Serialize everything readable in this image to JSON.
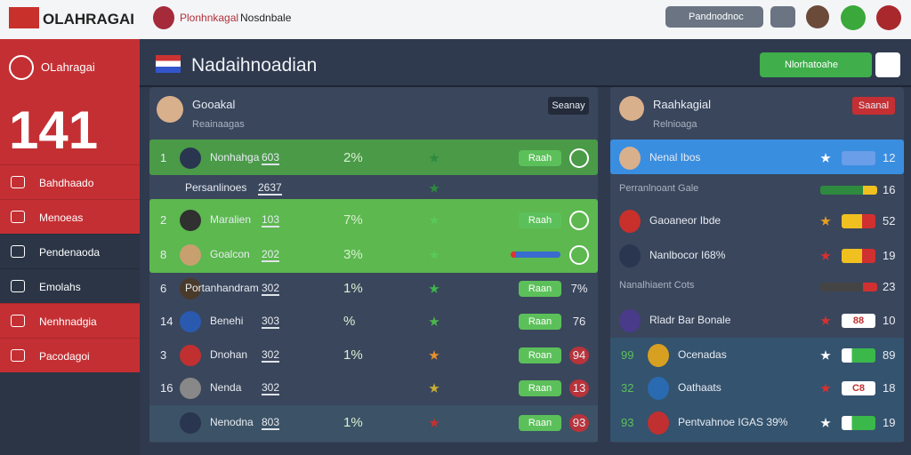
{
  "header": {
    "logo": "OLAHRAGAI",
    "tab": "Plonhnkagal",
    "tab2": "Nosdnbale",
    "search": "Pandnodnoc"
  },
  "sidebar": {
    "brand": "OLahragai",
    "big": "141",
    "items": [
      "Bahdhaado",
      "Menoeas",
      "Pendenaoda",
      "Emolahs",
      "Nenhnadgia",
      "Pacodagoi"
    ]
  },
  "main": {
    "title": "Nadaihnoadian",
    "button": "Nlorhatoahe"
  },
  "left_panel": {
    "title": "Gooakal",
    "subtitle": "Reainaagas",
    "button": "Seanay",
    "rows": [
      {
        "rank": "1",
        "name": "Nonhahga",
        "score": "603",
        "pct": "2%",
        "action": "Raah"
      },
      {
        "name": "Persanlinoes",
        "score": "2637"
      },
      {
        "rank": "2",
        "name": "Maralien",
        "score": "103",
        "pct": "7%",
        "action": "Raah"
      },
      {
        "rank": "8",
        "name": "Goalcon",
        "score": "202",
        "pct": "3%"
      },
      {
        "rank": "6",
        "name": "Portanhandram",
        "score": "302",
        "pct": "1%",
        "action": "Raan",
        "value": "7%"
      },
      {
        "rank": "14",
        "name": "Benehi",
        "score": "303",
        "pct": "%",
        "action": "Raan",
        "value": "76"
      },
      {
        "rank": "3",
        "name": "Dnohan",
        "score": "302",
        "pct": "1%",
        "action": "Roan",
        "value": "94"
      },
      {
        "rank": "16",
        "name": "Nenda",
        "score": "302",
        "action": "Raan",
        "value": "13"
      },
      {
        "name": "Nenodna",
        "score": "803",
        "pct": "1%",
        "action": "Raan",
        "value": "93"
      }
    ]
  },
  "right_panel": {
    "title": "Raahkagial",
    "subtitle": "Relnioaga",
    "button": "Saanal",
    "rows": [
      {
        "name": "Nenal Ibos",
        "value": "12"
      },
      {
        "name": "Perranlnoant Gale",
        "value": "16"
      },
      {
        "name": "Gaoaneor Ibde",
        "value": "52"
      },
      {
        "name": "Nanlbocor I68%",
        "value": "19"
      },
      {
        "name": "Nanalhiaent Cots",
        "value": "23"
      },
      {
        "name": "Rladr Bar Bonale",
        "badge": "88",
        "value": "10"
      },
      {
        "rank": "99",
        "name": "Ocenadas",
        "value": "89"
      },
      {
        "rank": "32",
        "name": "Oathaats",
        "badge": "C8",
        "value": "18"
      },
      {
        "rank": "93",
        "name": "Pentvahnoe IGAS 39%",
        "value": "19"
      }
    ]
  }
}
